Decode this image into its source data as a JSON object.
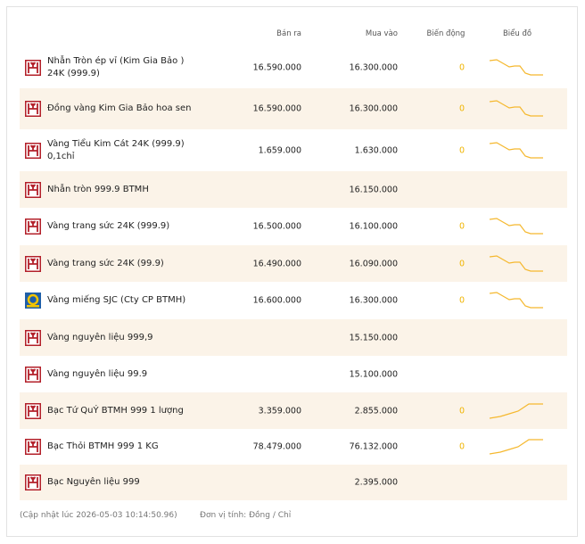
{
  "table": {
    "columns": [
      "Bán ra",
      "Mua vào",
      "Biến động",
      "Biểu đồ"
    ],
    "rows": [
      {
        "name": "Nhẫn Tròn ép vỉ (Kim Gia Bảo ) 24K (999.9)",
        "sell": "16.590.000",
        "buy": "16.300.000",
        "change": "0",
        "trend": "down",
        "icon": "btmh"
      },
      {
        "name": "Đồng vàng Kim Gia Bảo hoa sen",
        "sell": "16.590.000",
        "buy": "16.300.000",
        "change": "0",
        "trend": "down",
        "icon": "btmh"
      },
      {
        "name": "Vàng Tiểu Kim Cát 24K (999.9) 0,1chỉ",
        "sell": "1.659.000",
        "buy": "1.630.000",
        "change": "0",
        "trend": "down",
        "icon": "btmh"
      },
      {
        "name": "Nhẫn tròn 999.9 BTMH",
        "buy": "16.150.000",
        "icon": "btmh"
      },
      {
        "name": "Vàng trang sức 24K (999.9)",
        "sell": "16.500.000",
        "buy": "16.100.000",
        "change": "0",
        "trend": "down",
        "icon": "btmh"
      },
      {
        "name": "Vàng trang sức 24K (99.9)",
        "sell": "16.490.000",
        "buy": "16.090.000",
        "change": "0",
        "trend": "down",
        "icon": "btmh"
      },
      {
        "name": "Vàng miếng SJC (Cty CP BTMH)",
        "sell": "16.600.000",
        "buy": "16.300.000",
        "change": "0",
        "trend": "down",
        "icon": "sjc"
      },
      {
        "name": "Vàng nguyên liệu 999,9",
        "buy": "15.150.000",
        "icon": "btmh"
      },
      {
        "name": "Vàng nguyên liệu 99.9",
        "buy": "15.100.000",
        "icon": "btmh"
      },
      {
        "name": "Bạc Tứ QuÝ BTMH 999 1 lượng",
        "sell": "3.359.000",
        "buy": "2.855.000",
        "change": "0",
        "trend": "up",
        "icon": "btmh"
      },
      {
        "name": "Bạc Thỏi BTMH 999 1 KG",
        "sell": "78.479.000",
        "buy": "76.132.000",
        "change": "0",
        "trend": "up",
        "icon": "btmh"
      },
      {
        "name": "Bạc Nguyên liệu 999",
        "buy": "2.395.000",
        "icon": "btmh"
      }
    ]
  },
  "footer": {
    "updated": "(Cập nhật lúc 2026-05-03 10:14:50.96)",
    "unit": "Đơn vị tính: Đồng / Chỉ"
  }
}
